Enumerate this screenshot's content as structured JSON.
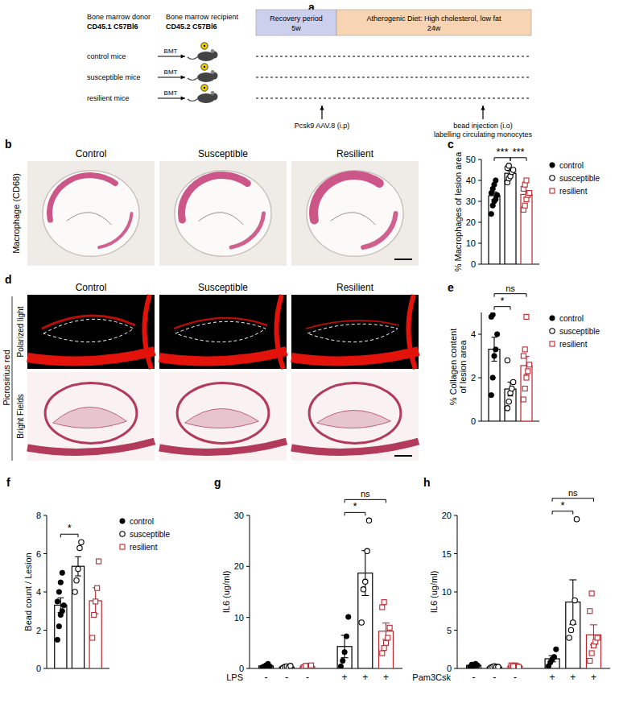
{
  "figure": {
    "schematic": {
      "panel": "a",
      "donor": [
        "Bone marrow donor",
        "CD45.1 C57Bl6"
      ],
      "recipient": [
        "Bone marrow recipient",
        "CD45.2 C57Bl6"
      ],
      "phases": [
        {
          "label": "Recovery period",
          "duration": "5w"
        },
        {
          "label": "Atherogenic Diet: High cholesterol, low fat",
          "duration": "24w"
        }
      ],
      "groups": [
        "control mice",
        "susceptible mice",
        "resilient mice"
      ],
      "transfer": "BMT",
      "events": [
        [
          "Pcsk9 AAV.8 (i.p)"
        ],
        [
          "bead injection (i.o)",
          "labelling circulating monocytes"
        ]
      ]
    },
    "staining_b": {
      "panel": "b",
      "stain": "Macrophage (CD68)",
      "columns": [
        "Control",
        "Susceptible",
        "Resilient"
      ]
    },
    "staining_d": {
      "panel": "d",
      "stain": "Picrosirius red",
      "columns": [
        "Control",
        "Susceptible",
        "Resilient"
      ],
      "rows": [
        "Polarized light",
        "Bright Fields"
      ]
    }
  },
  "chart_data": [
    {
      "panel": "c",
      "type": "bar",
      "y_label": "% Macrophages of lesion area",
      "categories": [
        null
      ],
      "ylim": [
        0,
        50
      ],
      "yticks": [
        0,
        10,
        20,
        30,
        40,
        50
      ],
      "legend": "right",
      "series": [
        {
          "name": "control",
          "color": "#000000",
          "marker": "circle",
          "values": [
            32.7
          ],
          "errors": [
            1.8
          ],
          "points": [
            [
              24,
              28,
              30,
              31,
              33,
              34,
              36,
              38,
              40
            ]
          ]
        },
        {
          "name": "susceptible",
          "color": "#000000",
          "marker": "open-circle",
          "values": [
            43.4
          ],
          "errors": [
            1.1
          ],
          "points": [
            [
              39,
              41,
              42,
              44,
              45,
              46,
              47
            ]
          ]
        },
        {
          "name": "resilient",
          "color": "#c0262d",
          "marker": "open-square",
          "values": [
            33.3
          ],
          "errors": [
            1.7
          ],
          "points": [
            [
              26,
              28,
              31,
              33,
              34,
              36,
              38,
              40
            ]
          ]
        }
      ],
      "annotations": [
        {
          "label": "***",
          "category": 0,
          "from": 0,
          "to": 1
        },
        {
          "label": "***",
          "category": 0,
          "from": 1,
          "to": 2
        }
      ]
    },
    {
      "panel": "e",
      "type": "bar",
      "y_label": "% Collagen content of lesion area",
      "categories": [
        null
      ],
      "ylim": [
        0,
        5
      ],
      "yticks": [
        0,
        2,
        4
      ],
      "legend": "right",
      "series": [
        {
          "name": "control",
          "color": "#000000",
          "marker": "circle",
          "values": [
            3.31
          ],
          "errors": [
            0.55
          ],
          "points": [
            [
              1.2,
              2.0,
              3.0,
              3.3,
              4.0,
              4.8,
              4.9
            ]
          ]
        },
        {
          "name": "susceptible",
          "color": "#000000",
          "marker": "open-circle",
          "values": [
            1.48
          ],
          "errors": [
            0.32
          ],
          "points": [
            [
              0.6,
              0.9,
              1.3,
              1.5,
              1.8,
              2.8
            ]
          ]
        },
        {
          "name": "resilient",
          "color": "#c0262d",
          "marker": "open-square",
          "values": [
            2.56
          ],
          "errors": [
            0.42
          ],
          "points": [
            [
              1.0,
              1.5,
              2.0,
              2.3,
              2.6,
              3.0,
              3.3,
              4.8
            ]
          ]
        }
      ],
      "annotations": [
        {
          "label": "*",
          "category": 0,
          "from": 0,
          "to": 1
        },
        {
          "label": "ns",
          "category": 0,
          "from": 0,
          "to": 2
        }
      ]
    },
    {
      "panel": "f",
      "type": "bar",
      "y_label": "Bead count / Lesion",
      "categories": [
        null
      ],
      "ylim": [
        0,
        8
      ],
      "yticks": [
        0,
        2,
        4,
        6,
        8
      ],
      "legend": "right",
      "series": [
        {
          "name": "control",
          "color": "#000000",
          "marker": "circle",
          "values": [
            3.31
          ],
          "errors": [
            0.38
          ],
          "points": [
            [
              1.5,
              2.2,
              2.8,
              3.0,
              3.3,
              3.5,
              4.0,
              4.5,
              5.0
            ]
          ]
        },
        {
          "name": "susceptible",
          "color": "#000000",
          "marker": "open-circle",
          "values": [
            5.34
          ],
          "errors": [
            0.5
          ],
          "points": [
            [
              4.0,
              4.6,
              5.2,
              6.3,
              6.6
            ]
          ]
        },
        {
          "name": "resilient",
          "color": "#c0262d",
          "marker": "open-square",
          "values": [
            3.54
          ],
          "errors": [
            0.68
          ],
          "points": [
            [
              1.6,
              2.8,
              3.5,
              4.2,
              5.6
            ]
          ]
        }
      ],
      "annotations": [
        {
          "label": "*",
          "category": 0,
          "from": 0,
          "to": 1
        }
      ]
    },
    {
      "panel": "g",
      "type": "bar",
      "y_label": "IL6 (ug/ml)",
      "x_label": "LPS",
      "categories": [
        "-",
        "+"
      ],
      "ylim": [
        0,
        30
      ],
      "yticks": [
        0,
        10,
        20,
        30
      ],
      "series": [
        {
          "name": "control",
          "color": "#000000",
          "marker": "circle",
          "values": [
            0.5,
            4.3
          ],
          "errors": [
            0.2,
            2.2
          ],
          "points": [
            [
              0.2,
              0.4,
              0.6,
              0.9,
              0.4
            ],
            [
              0.4,
              1.5,
              3.2,
              6.3,
              10.1
            ]
          ]
        },
        {
          "name": "susceptible",
          "color": "#000000",
          "marker": "open-circle",
          "values": [
            0.3,
            18.7
          ],
          "errors": [
            0.1,
            4.4
          ],
          "points": [
            [
              0.1,
              0.3,
              0.4,
              0.2,
              0.5
            ],
            [
              9,
              15.5,
              17,
              23,
              29
            ]
          ]
        },
        {
          "name": "resilient",
          "color": "#c0262d",
          "marker": "open-square",
          "values": [
            0.4,
            7.3
          ],
          "errors": [
            0.1,
            1.6
          ],
          "points": [
            [
              0.2,
              0.3,
              0.5,
              0.4,
              0.6,
              0.2,
              0.5
            ],
            [
              3,
              4,
              5,
              6,
              8,
              12,
              13
            ]
          ]
        }
      ],
      "annotations": [
        {
          "label": "*",
          "category": 1,
          "from": 0,
          "to": 1
        },
        {
          "label": "ns",
          "category": 1,
          "from": 0,
          "to": 2
        }
      ]
    },
    {
      "panel": "h",
      "type": "bar",
      "y_label": "IL6 (ug/ml)",
      "x_label": "Pam3Csk",
      "categories": [
        "-",
        "+"
      ],
      "ylim": [
        0,
        20
      ],
      "yticks": [
        0,
        5,
        10,
        15,
        20
      ],
      "series": [
        {
          "name": "control",
          "color": "#000000",
          "marker": "circle",
          "values": [
            0.4,
            1.26
          ],
          "errors": [
            0.1,
            0.4
          ],
          "points": [
            [
              0.2,
              0.5,
              0.3,
              0.6,
              0.4
            ],
            [
              0.3,
              0.8,
              1.2,
              1.5,
              2.5
            ]
          ]
        },
        {
          "name": "susceptible",
          "color": "#000000",
          "marker": "open-circle",
          "values": [
            0.2,
            8.68
          ],
          "errors": [
            0.05,
            2.9
          ],
          "points": [
            [
              0.1,
              0.2,
              0.3,
              0.2,
              0.2
            ],
            [
              4,
              5,
              6,
              8.9,
              19.5
            ]
          ]
        },
        {
          "name": "resilient",
          "color": "#c0262d",
          "marker": "open-square",
          "values": [
            0.3,
            4.4
          ],
          "errors": [
            0.1,
            1.3
          ],
          "points": [
            [
              0.2,
              0.3,
              0.4,
              0.3,
              0.2,
              0.4,
              0.3
            ],
            [
              1,
              2,
              3,
              3.5,
              4,
              7.5,
              9.8
            ]
          ]
        }
      ],
      "annotations": [
        {
          "label": "*",
          "category": 1,
          "from": 0,
          "to": 1
        },
        {
          "label": "ns",
          "category": 1,
          "from": 0,
          "to": 2
        }
      ]
    }
  ]
}
